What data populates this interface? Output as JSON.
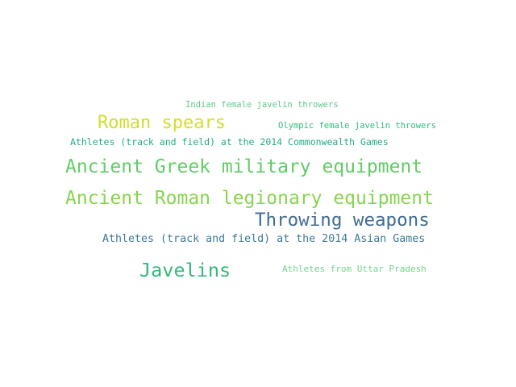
{
  "words": [
    {
      "text": "Indian female javelin throwers",
      "color": "#5fc98a"
    },
    {
      "text": "Roman spears",
      "color": "#d2de2a"
    },
    {
      "text": "Olympic female javelin throwers",
      "color": "#2dbd7c"
    },
    {
      "text": "Athletes (track and field) at the 2014 Commonwealth Games",
      "color": "#23a98a"
    },
    {
      "text": "Ancient Greek military equipment",
      "color": "#62cc66"
    },
    {
      "text": "Ancient Roman legionary equipment",
      "color": "#86d54f"
    },
    {
      "text": "Throwing weapons",
      "color": "#3f6d94"
    },
    {
      "text": "Athletes (track and field) at the 2014 Asian Games",
      "color": "#3d7a98"
    },
    {
      "text": "Javelins",
      "color": "#35b87a"
    },
    {
      "text": "Athletes from Uttar Pradesh",
      "color": "#6fd58a"
    }
  ]
}
